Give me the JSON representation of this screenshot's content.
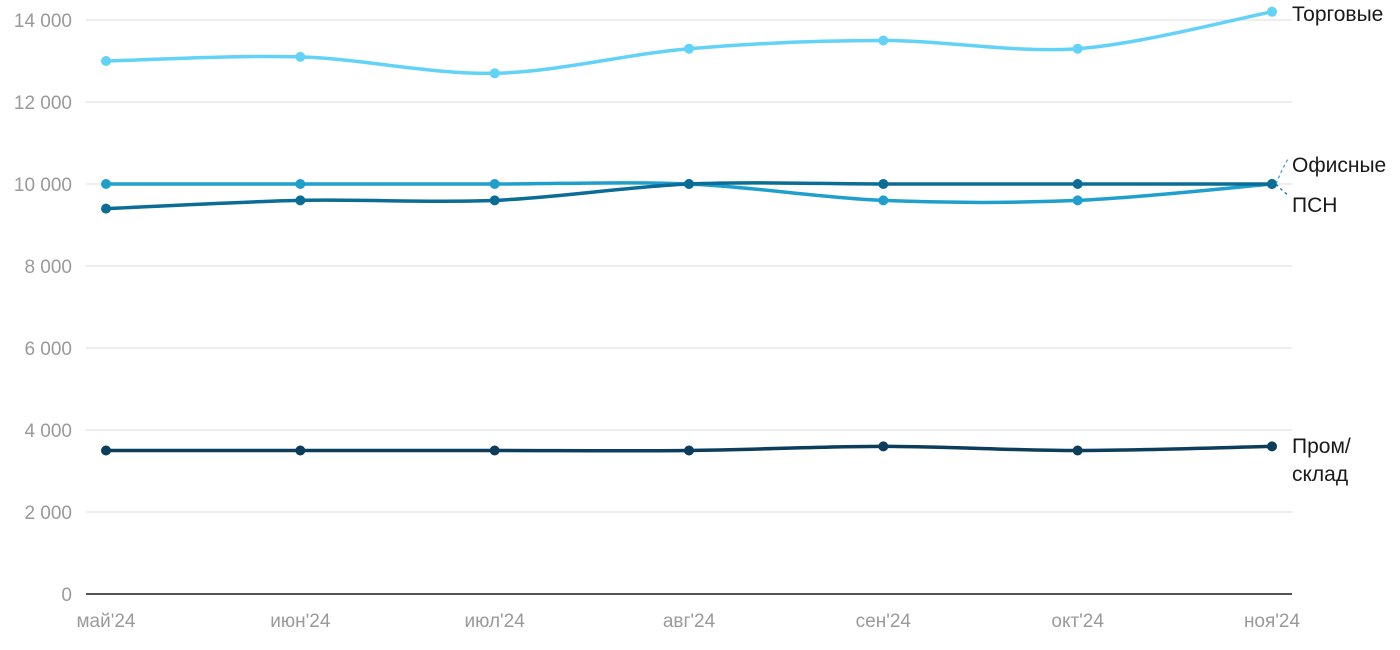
{
  "chart_data": {
    "type": "line",
    "categories": [
      "май'24",
      "июн'24",
      "июл'24",
      "авг'24",
      "сен'24",
      "окт'24",
      "ноя'24"
    ],
    "ylim": [
      0,
      14000
    ],
    "yticks": [
      0,
      2000,
      4000,
      6000,
      8000,
      10000,
      12000,
      14000
    ],
    "ytick_labels": [
      "0",
      "2 000",
      "4 000",
      "6 000",
      "8 000",
      "10 000",
      "12 000",
      "14 000"
    ],
    "grid": true,
    "legend": "inline-right",
    "series": [
      {
        "name": "Торговые",
        "color": "#62d2f6",
        "values": [
          13000,
          13100,
          12700,
          13300,
          13500,
          13300,
          14200
        ]
      },
      {
        "name": "Офисные",
        "color": "#1fa0cc",
        "values": [
          10000,
          10000,
          10000,
          10000,
          9600,
          9600,
          10000
        ]
      },
      {
        "name": "ПСН",
        "color": "#0b6d96",
        "values": [
          9400,
          9600,
          9600,
          10000,
          10000,
          10000,
          10000
        ]
      },
      {
        "name": "Пром/ склад",
        "label_lines": [
          "Пром/",
          "склад"
        ],
        "color": "#0c3e5c",
        "values": [
          3500,
          3500,
          3500,
          3500,
          3600,
          3500,
          3600
        ]
      }
    ]
  }
}
